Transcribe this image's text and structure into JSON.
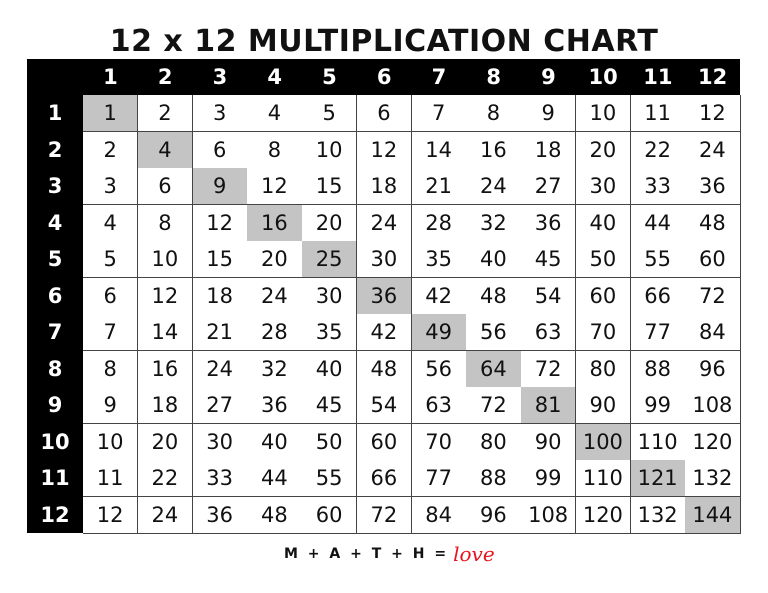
{
  "title": "12 x 12 MULTIPLICATION CHART",
  "column_headers": [
    "1",
    "2",
    "3",
    "4",
    "5",
    "6",
    "7",
    "8",
    "9",
    "10",
    "11",
    "12"
  ],
  "row_headers": [
    "1",
    "2",
    "3",
    "4",
    "5",
    "6",
    "7",
    "8",
    "9",
    "10",
    "11",
    "12"
  ],
  "rows": [
    [
      1,
      2,
      3,
      4,
      5,
      6,
      7,
      8,
      9,
      10,
      11,
      12
    ],
    [
      2,
      4,
      6,
      8,
      10,
      12,
      14,
      16,
      18,
      20,
      22,
      24
    ],
    [
      3,
      6,
      9,
      12,
      15,
      18,
      21,
      24,
      27,
      30,
      33,
      36
    ],
    [
      4,
      8,
      12,
      16,
      20,
      24,
      28,
      32,
      36,
      40,
      44,
      48
    ],
    [
      5,
      10,
      15,
      20,
      25,
      30,
      35,
      40,
      45,
      50,
      55,
      60
    ],
    [
      6,
      12,
      18,
      24,
      30,
      36,
      42,
      48,
      54,
      60,
      66,
      72
    ],
    [
      7,
      14,
      21,
      28,
      35,
      42,
      49,
      56,
      63,
      70,
      77,
      84
    ],
    [
      8,
      16,
      24,
      32,
      40,
      48,
      56,
      64,
      72,
      80,
      88,
      96
    ],
    [
      9,
      18,
      27,
      36,
      45,
      54,
      63,
      72,
      81,
      90,
      99,
      108
    ],
    [
      10,
      20,
      30,
      40,
      50,
      60,
      70,
      80,
      90,
      100,
      110,
      120
    ],
    [
      11,
      22,
      33,
      44,
      55,
      66,
      77,
      88,
      99,
      110,
      121,
      132
    ],
    [
      12,
      24,
      36,
      48,
      60,
      72,
      84,
      96,
      108,
      120,
      132,
      144
    ]
  ],
  "colors": {
    "header_bg": "#000000",
    "header_text": "#ffffff",
    "diagonal_highlight": "#c4c4c4",
    "love": "#e8141e"
  },
  "footer": {
    "formula": "M + A + T + H =",
    "love": "love"
  }
}
